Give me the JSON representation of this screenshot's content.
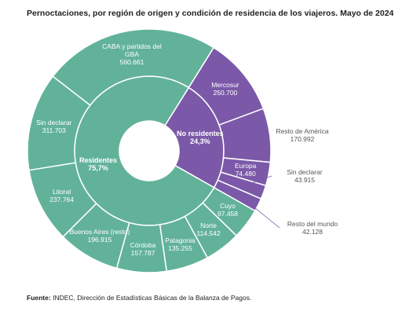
{
  "chart_data": {
    "type": "sunburst",
    "title": "Pernoctaciones, por región de origen y condición de residencia de los viajeros. Mayo de 2024",
    "groups": [
      {
        "name": "No residentes",
        "value": 24.3,
        "value_label": "24,3%",
        "color": "#7b59a8",
        "children": [
          {
            "name": "Mercosur",
            "value": 250700,
            "value_label": "250.700"
          },
          {
            "name": "Resto de América",
            "value": 170992,
            "value_label": "170.992"
          },
          {
            "name": "Europa",
            "value": 74480,
            "value_label": "74.480"
          },
          {
            "name": "Sin declarar",
            "value": 43915,
            "value_label": "43.915"
          },
          {
            "name": "Resto del mundo",
            "value": 42128,
            "value_label": "42.128"
          }
        ]
      },
      {
        "name": "Residentes",
        "value": 75.7,
        "value_label": "75,7%",
        "color": "#62b29a",
        "children": [
          {
            "name": "Cuyo",
            "value": 97458,
            "value_label": "97.458"
          },
          {
            "name": "Norte",
            "value": 114542,
            "value_label": "114.542"
          },
          {
            "name": "Patagonia",
            "value": 135255,
            "value_label": "135.255"
          },
          {
            "name": "Córdoba",
            "value": 157787,
            "value_label": "157.787"
          },
          {
            "name": "Buenos Aires (resto)",
            "value": 196915,
            "value_label": "196.915"
          },
          {
            "name": "Litoral",
            "value": 237764,
            "value_label": "237.764"
          },
          {
            "name": "Sin declarar",
            "value": 311703,
            "value_label": "311.703"
          },
          {
            "name": "CABA y partidos del GBA",
            "value": 560661,
            "value_label": "560.661"
          }
        ]
      }
    ],
    "source_label": "Fuente:",
    "source": "INDEC, Dirección de Estadísticas Básicas de la Balanza de Pagos."
  }
}
